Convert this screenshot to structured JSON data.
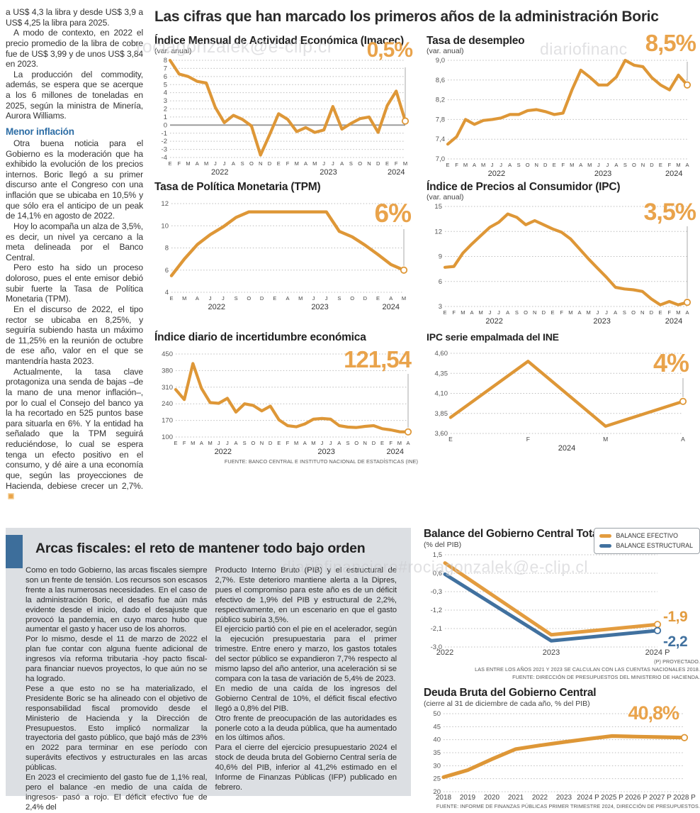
{
  "main": {
    "title": "Las cifras que han marcado los primeros años de la administración Boric",
    "source_note": "FUENTE: BANCO CENTRAL E INSTITUTO NACIONAL DE ESTADÍSTICAS (INE)"
  },
  "left_article": {
    "paragraphs_intro": [
      "a US$ 4,3 la libra y desde US$ 3,9 a US$ 4,25 la libra para 2025.",
      "A modo de contexto, en 2022 el precio promedio de la libra de cobre fue de US$ 3,99 y de unos US$ 3,84 en 2023.",
      "La producción del commodity, además, se espera que se acerque a los 6 millones de toneladas en 2025, según la ministra de Minería, Aurora Williams."
    ],
    "subhead": "Menor inflación",
    "paragraphs_body": [
      "Otra buena noticia para el Gobierno es la moderación que ha exhibido la evolución de los precios internos. Boric llegó a su primer discurso ante el Congreso con una inflación que se ubicaba en 10,5% y que sólo era el anticipo de un peak de 14,1% en agosto de 2022.",
      "Hoy lo acompaña un alza de 3,5%, es decir, un nivel ya cercano a la meta delineada por el Banco Central.",
      "Pero esto ha sido un proceso doloroso, pues el ente emisor debió subir fuerte la Tasa de Política Monetaria (TPM).",
      "En el discurso de 2022, el tipo rector se ubicaba en 8,25%, y seguiría subiendo hasta un máximo de 11,25% en la reunión de octubre de ese año, valor en el que se mantendría hasta 2023.",
      "Actualmente, la tasa clave protagoniza una senda de bajas –de la mano de una menor inflación–, por lo cual el Consejo del banco ya la ha recortado en 525 puntos base para situarla en 6%. Y la entidad ha señalado que la TPM seguirá reduciéndose, lo cual se espera tenga un efecto positivo en el consumo, y dé aire a una economía que, según las proyecciones de Hacienda, debiese crecer un 2,7%."
    ]
  },
  "fiscal_section": {
    "title": "Arcas fiscales: el reto de mantener todo bajo orden",
    "col1_paragraphs": [
      "Como en todo Gobierno, las arcas fiscales siempre son un frente de tensión. Los recursos son escasos frente a las numerosas necesidades. En el caso de la administración Boric, el desafío fue aún más evidente desde el inicio, dado el desajuste que provocó la pandemia, en cuyo marco hubo que aumentar el gasto y hacer uso de los ahorros.",
      "Por lo mismo, desde el 11 de marzo de 2022 el plan fue contar con alguna fuente adicional de ingresos vía reforma tributaria -hoy pacto fiscal- para financiar nuevos proyectos, lo que aún no se ha logrado.",
      "Pese a que esto no se ha materializado, el Presidente Boric se ha alineado con el objetivo de responsabilidad fiscal promovido desde el Ministerio de Hacienda y la Dirección de Presupuestos. Esto implicó normalizar la trayectoria del gasto público, que bajó más de 23% en 2022 para terminar en ese período con superávits efectivos y estructurales en las arcas públicas.",
      "En 2023 el crecimiento del gasto fue de 1,1% real, pero el balance -en medio de una caída de ingresos-  pasó a rojo. El déficit efectivo fue de 2,4% del"
    ],
    "col2_paragraphs": [
      "Producto Interno Bruto (PIB) y el estructural de 2,7%. Este deterioro mantiene alerta a la Dipres, pues el compromiso para este año es de un déficit efectivo de 1,9% del PIB y estructural de 2,2%, respectivamente, en un escenario en que el gasto público subiría 3,5%.",
      "El ejercicio partió con el pie en el acelerador, según la ejecución presupuestaria para el primer trimestre. Entre enero y marzo, los gastos totales del sector público se expandieron 7,7% respecto al mismo lapso del año anterior, una aceleración si se compara con la tasa de variación de 5,4% de 2023.",
      "En medio de una caída de los ingresos del Gobierno Central de 10%, el déficit fiscal efectivo llegó a 0,8% del PIB.",
      "Otro frente de preocupación de las autoridades es ponerle coto a la deuda pública, que ha aumentado en los últimos años.",
      "Para el cierre del ejercicio presupuestario 2024 el stock de deuda bruta del Gobierno Central sería de 40,6% del PIB, inferior al 41,2% estimado en el Informe de Finanzas Públicas (IFP) publicado en febrero."
    ]
  },
  "watermarks": {
    "w1": "rociagonzalek@e-clip.cl",
    "w2": "diariofinanc",
    "w3": "diariofinanciero#rociagonzalek@e-clip.cl"
  },
  "colors": {
    "accent_orange": "#e09a3c",
    "accent_blue": "#41719f",
    "highlight_orange": "#e9a34b",
    "subhead_blue": "#2d6da5",
    "panel_gray": "#dcdfe3",
    "panel_bar_blue": "#3d6e9b"
  },
  "chart_data": [
    {
      "type": "line",
      "title": "Índice Mensual de Actividad Económica (Imacec)",
      "subtitle": "(var. anual)",
      "highlight": "0,5%",
      "ylim": [
        -4,
        8
      ],
      "yticks": [
        {
          "v": 8,
          "t": "8"
        },
        {
          "v": 7,
          "t": "7"
        },
        {
          "v": 6,
          "t": "6"
        },
        {
          "v": 5,
          "t": "5"
        },
        {
          "v": 4,
          "t": "4"
        },
        {
          "v": 3,
          "t": "3"
        },
        {
          "v": 2,
          "t": "2"
        },
        {
          "v": 1,
          "t": "1"
        },
        {
          "v": 0,
          "t": "0"
        },
        {
          "v": -1,
          "t": "-1"
        },
        {
          "v": -2,
          "t": "-2"
        },
        {
          "v": -3,
          "t": "-3"
        },
        {
          "v": -4,
          "t": "-4"
        }
      ],
      "ytick_size": 8,
      "zero_line": true,
      "drop_line": true,
      "drop_offset": 10,
      "x_labels": [
        "E",
        "F",
        "M",
        "A",
        "M",
        "J",
        "J",
        "A",
        "S",
        "O",
        "N",
        "D",
        "E",
        "F",
        "M",
        "A",
        "M",
        "J",
        "J",
        "A",
        "S",
        "O",
        "N",
        "D",
        "E",
        "F",
        "M"
      ],
      "years": [
        {
          "label": "2022",
          "center_index": 5.5
        },
        {
          "label": "2023",
          "center_index": 17.5
        },
        {
          "label": "2024",
          "center_index": 25
        }
      ],
      "series": [
        {
          "name": "Imacec",
          "color": "#de9737",
          "width": 4.2,
          "values": [
            8,
            6.3,
            6,
            5.4,
            5.2,
            2.2,
            0.3,
            1.2,
            0.7,
            -0.1,
            -3.7,
            -1.2,
            1.4,
            0.7,
            -0.8,
            -0.3,
            -0.9,
            -0.6,
            2.3,
            -0.5,
            0.2,
            0.8,
            1,
            -0.9,
            2.4,
            4.2,
            0.5
          ]
        }
      ]
    },
    {
      "type": "line",
      "title": "Tasa de desempleo",
      "subtitle": "(var. anual)",
      "highlight": "8,5%",
      "ylim": [
        7.0,
        9.0
      ],
      "yticks": [
        {
          "v": 9,
          "t": "9,0"
        },
        {
          "v": 8.6,
          "t": "8,6"
        },
        {
          "v": 8.2,
          "t": "8,2"
        },
        {
          "v": 7.8,
          "t": "7,8"
        },
        {
          "v": 7.4,
          "t": "7,4"
        },
        {
          "v": 7,
          "t": "7,0"
        }
      ],
      "drop_line": true,
      "drop_offset": 2,
      "x_labels": [
        "E",
        "F",
        "M",
        "A",
        "M",
        "J",
        "J",
        "A",
        "S",
        "O",
        "N",
        "D",
        "E",
        "F",
        "M",
        "A",
        "M",
        "J",
        "J",
        "A",
        "S",
        "O",
        "N",
        "D",
        "E",
        "F",
        "M",
        "A"
      ],
      "years": [
        {
          "label": "2022",
          "center_index": 5.5
        },
        {
          "label": "2023",
          "center_index": 17.5
        },
        {
          "label": "2024",
          "center_index": 25.5
        }
      ],
      "series": [
        {
          "name": "Tasa de desempleo",
          "color": "#de9737",
          "width": 4.2,
          "values": [
            7.3,
            7.45,
            7.8,
            7.7,
            7.78,
            7.8,
            7.83,
            7.9,
            7.9,
            7.98,
            8,
            7.96,
            7.9,
            7.93,
            8.4,
            8.8,
            8.66,
            8.5,
            8.5,
            8.66,
            9,
            8.9,
            8.87,
            8.65,
            8.5,
            8.4,
            8.7,
            8.5
          ]
        }
      ]
    },
    {
      "type": "line",
      "title": "Tasa de Política Monetaria (TPM)",
      "subtitle": "",
      "highlight": "6%",
      "ylim": [
        4,
        12
      ],
      "yticks": [
        {
          "v": 12,
          "t": "12"
        },
        {
          "v": 10,
          "t": "10"
        },
        {
          "v": 8,
          "t": "8"
        },
        {
          "v": 6,
          "t": "6"
        },
        {
          "v": 4,
          "t": "4"
        }
      ],
      "drop_line": true,
      "drop_offset": 36,
      "x_labels": [
        "E",
        "M",
        "A",
        "J",
        "J",
        "S",
        "O",
        "D",
        "E",
        "A",
        "M",
        "J",
        "J",
        "S",
        "O",
        "D",
        "E",
        "A",
        "M"
      ],
      "years": [
        {
          "label": "2022",
          "center_index": 3.5
        },
        {
          "label": "2023",
          "center_index": 11.5
        },
        {
          "label": "2024",
          "center_index": 17
        }
      ],
      "series": [
        {
          "name": "TPM",
          "color": "#de9737",
          "width": 4.4,
          "values": [
            5.5,
            7,
            8.3,
            9.2,
            9.9,
            10.75,
            11.25,
            11.25,
            11.25,
            11.25,
            11.25,
            11.25,
            11.25,
            9.5,
            9,
            8.25,
            7.4,
            6.5,
            6
          ]
        }
      ]
    },
    {
      "type": "line",
      "title": "Índice de Precios al Consumidor (IPC)",
      "subtitle": "(var. anual)",
      "highlight": "3,5%",
      "ylim": [
        3,
        15
      ],
      "yticks": [
        {
          "v": 15,
          "t": "15"
        },
        {
          "v": 12,
          "t": "12"
        },
        {
          "v": 9,
          "t": "9"
        },
        {
          "v": 6,
          "t": "6"
        },
        {
          "v": 3,
          "t": "3"
        }
      ],
      "drop_line": true,
      "drop_offset": 28,
      "x_labels": [
        "E",
        "F",
        "M",
        "A",
        "M",
        "J",
        "J",
        "A",
        "S",
        "O",
        "N",
        "D",
        "E",
        "F",
        "M",
        "A",
        "M",
        "J",
        "J",
        "A",
        "S",
        "O",
        "N",
        "D",
        "E",
        "F",
        "M",
        "A"
      ],
      "years": [
        {
          "label": "2022",
          "center_index": 5.5
        },
        {
          "label": "2023",
          "center_index": 17.5
        },
        {
          "label": "2024",
          "center_index": 25.5
        }
      ],
      "series": [
        {
          "name": "IPC",
          "color": "#de9737",
          "width": 4.2,
          "values": [
            7.7,
            7.8,
            9.4,
            10.5,
            11.5,
            12.5,
            13.1,
            14.1,
            13.7,
            12.8,
            13.3,
            12.8,
            12.3,
            11.9,
            11.1,
            9.9,
            8.7,
            7.6,
            6.5,
            5.3,
            5.1,
            5,
            4.8,
            3.9,
            3.2,
            3.6,
            3.2,
            3.5
          ]
        }
      ]
    },
    {
      "type": "line",
      "title": "Índice diario de incertidumbre económica",
      "subtitle": "",
      "highlight": "121,54",
      "ylim": [
        100,
        450
      ],
      "yticks": [
        {
          "v": 450,
          "t": "450"
        },
        {
          "v": 380,
          "t": "380"
        },
        {
          "v": 310,
          "t": "310"
        },
        {
          "v": 240,
          "t": "240"
        },
        {
          "v": 170,
          "t": "170"
        },
        {
          "v": 100,
          "t": "100"
        }
      ],
      "drop_line": true,
      "drop_offset": 28,
      "x_labels": [
        "E",
        "F",
        "M",
        "A",
        "M",
        "J",
        "J",
        "A",
        "S",
        "O",
        "N",
        "D",
        "E",
        "F",
        "M",
        "A",
        "M",
        "J",
        "J",
        "A",
        "S",
        "O",
        "N",
        "D",
        "E",
        "F",
        "M",
        "A"
      ],
      "years": [
        {
          "label": "2022",
          "center_index": 5.5
        },
        {
          "label": "2023",
          "center_index": 17.5
        },
        {
          "label": "2024",
          "center_index": 25.5
        }
      ],
      "series": [
        {
          "name": "Incertidumbre económica",
          "color": "#de9737",
          "width": 4.2,
          "values": [
            300,
            258,
            410,
            305,
            245,
            242,
            263,
            205,
            240,
            233,
            210,
            230,
            172,
            148,
            143,
            155,
            175,
            178,
            175,
            148,
            142,
            140,
            145,
            148,
            135,
            130,
            122,
            121.54
          ]
        }
      ]
    },
    {
      "type": "line",
      "title": "IPC serie empalmada del INE",
      "subtitle": "",
      "highlight": "4%",
      "ylim": [
        3.6,
        4.6
      ],
      "yticks": [
        {
          "v": 4.6,
          "t": "4,60"
        },
        {
          "v": 4.35,
          "t": "4,35"
        },
        {
          "v": 4.1,
          "t": "4,10"
        },
        {
          "v": 3.85,
          "t": "3,85"
        },
        {
          "v": 3.6,
          "t": "3,60"
        }
      ],
      "drop_line": true,
      "drop_offset": 35,
      "xtick_size": 8.5,
      "x_labels": [
        "E",
        "F",
        "M",
        "A"
      ],
      "years": [
        {
          "label": "2024",
          "center_index": 1.5
        }
      ],
      "series": [
        {
          "name": "IPC empalmado",
          "color": "#de9737",
          "width": 4.4,
          "values": [
            3.8,
            4.5,
            3.69,
            4.0
          ]
        }
      ]
    },
    {
      "type": "line",
      "title": "Balance del Gobierno Central Total",
      "subtitle": "(% del PIB)",
      "ylim": [
        -3.0,
        1.5
      ],
      "yticks": [
        {
          "v": 1.5,
          "t": "1,5"
        },
        {
          "v": 0.6,
          "t": "0,6"
        },
        {
          "v": -0.3,
          "t": "-0,3"
        },
        {
          "v": -1.2,
          "t": "-1,2"
        },
        {
          "v": -2.1,
          "t": "-2,1"
        },
        {
          "v": -3,
          "t": "-3,0"
        }
      ],
      "xtick_size": 11,
      "x_labels": [
        "2022",
        "2023",
        "2024 P"
      ],
      "years": [],
      "legend": [
        {
          "label": "BALANCE EFECTIVO",
          "color": "#e39c3f"
        },
        {
          "label": "BALANCE ESTRUCTURAL",
          "color": "#41719f"
        }
      ],
      "series": [
        {
          "name": "Balance efectivo",
          "color": "#e39c3f",
          "width": 5,
          "values": [
            1.1,
            -2.4,
            -1.9
          ]
        },
        {
          "name": "Balance estructural",
          "color": "#41719f",
          "width": 5,
          "values": [
            0.55,
            -2.7,
            -2.2
          ]
        }
      ],
      "end_labels": [
        {
          "text": "-1,9",
          "color": "#e39c3f",
          "v": -1.9,
          "dy": -4
        },
        {
          "text": "-2,2",
          "color": "#41719f",
          "v": -2.2,
          "dy": 22
        }
      ],
      "notes": [
        "(P) PROYECTADO.",
        "LAS ENTRE LOS AÑOS 2021 Y 2023 SE CALCULAN  CON LAS CUENTAS NACIONALES 2018.",
        "FUENTE: DIRECCIÓN DE PRESUPUESTOS DEL MINISTERIO DE HACIENDA."
      ]
    },
    {
      "type": "line",
      "title": "Deuda Bruta del Gobierno Central",
      "subtitle": "(cierre al 31 de diciembre de cada año, % del PIB)",
      "highlight": "40,8%",
      "ylim": [
        20,
        50
      ],
      "yticks": [
        {
          "v": 50,
          "t": "50"
        },
        {
          "v": 45,
          "t": "45"
        },
        {
          "v": 40,
          "t": "40"
        },
        {
          "v": 35,
          "t": "35"
        },
        {
          "v": 30,
          "t": "30"
        },
        {
          "v": 25,
          "t": "25"
        },
        {
          "v": 20,
          "t": "20"
        }
      ],
      "xtick_size": 10,
      "x_labels": [
        "2018",
        "2019",
        "2020",
        "2021",
        "2022",
        "2023",
        "2024 P",
        "2025 P",
        "2026 P",
        "2027 P",
        "2028 P"
      ],
      "years": [],
      "series": [
        {
          "name": "Deuda bruta",
          "color": "#de9737",
          "width": 5.2,
          "values": [
            25.6,
            28.3,
            32.5,
            36.4,
            37.8,
            39.1,
            40.3,
            41.4,
            41.2,
            41,
            40.8
          ]
        }
      ],
      "source": "FUENTE: INFORME DE FINANZAS PÚBLICAS PRIMER TRIMESTRE 2024, DIRECCIÓN DE PRESUPUESTOS."
    }
  ]
}
